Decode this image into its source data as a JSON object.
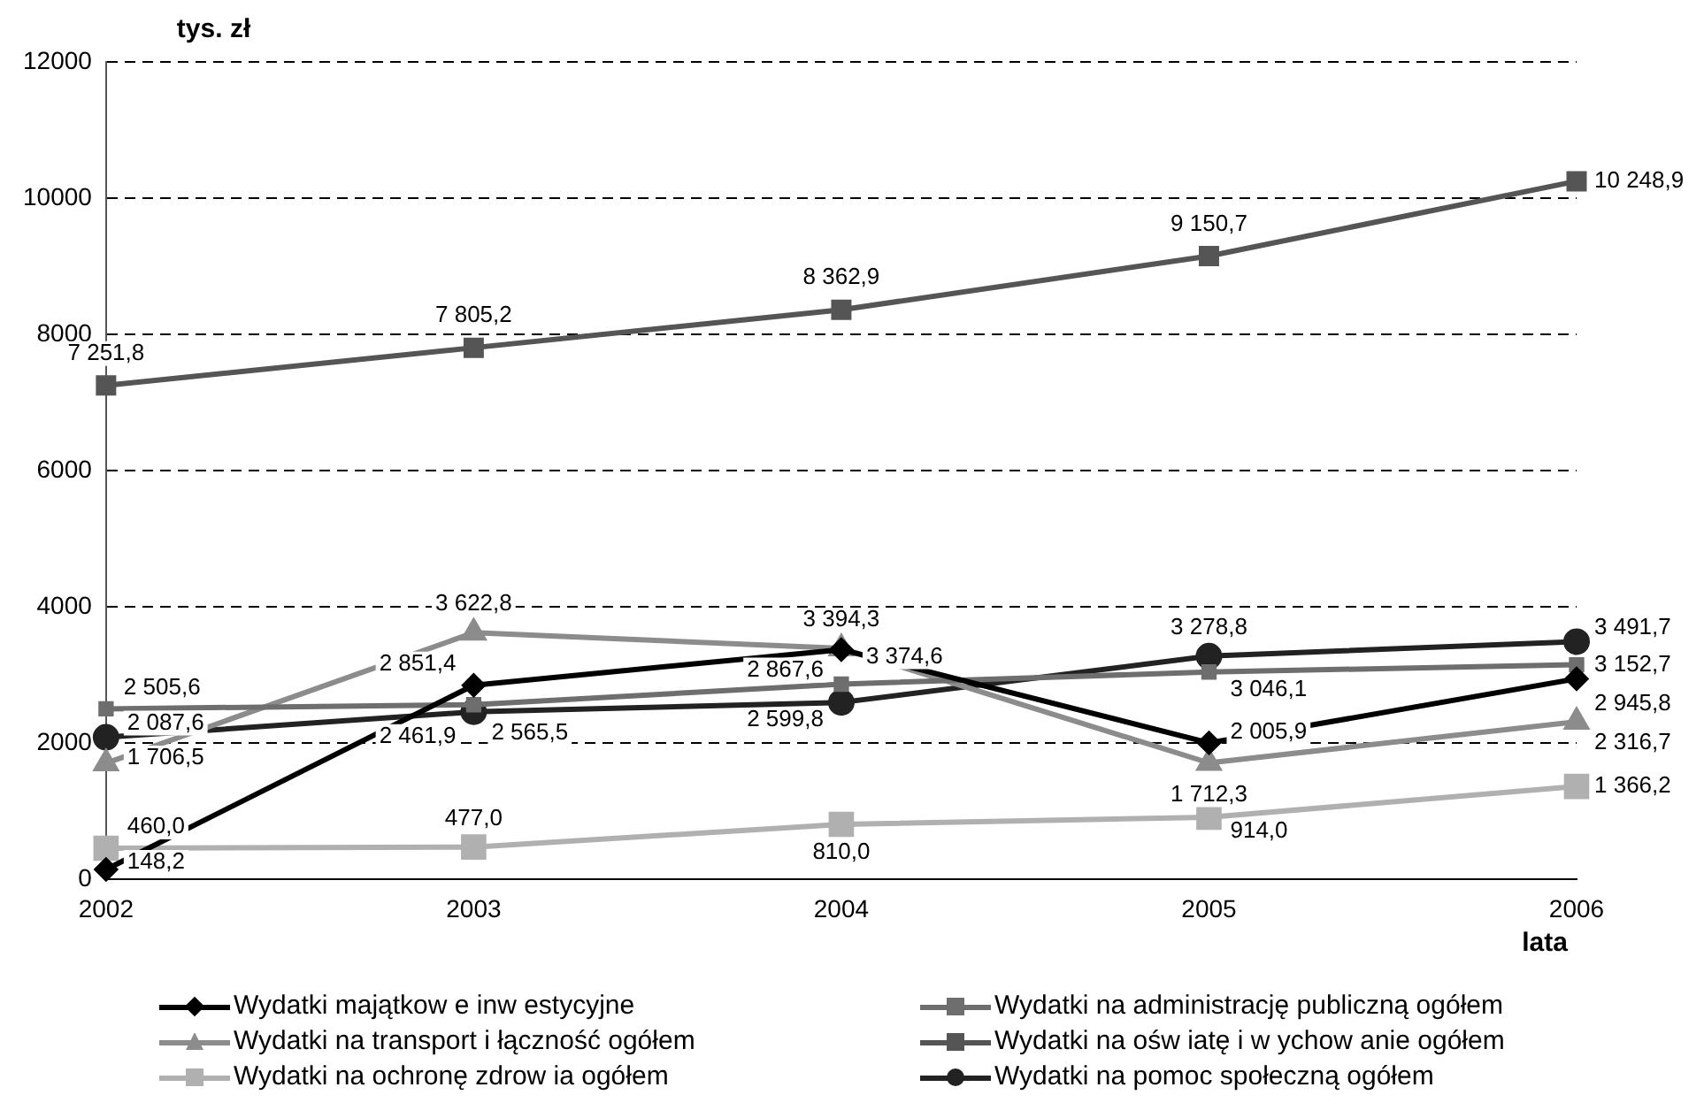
{
  "chart_data": {
    "type": "line",
    "ylabel": "tys. zł",
    "xlabel": "lata",
    "x": [
      2002,
      2003,
      2004,
      2005,
      2006
    ],
    "xlim": [
      2002,
      2006
    ],
    "xticks": [
      2002,
      2003,
      2004,
      2005,
      2006
    ],
    "ylim": [
      0,
      12000
    ],
    "yticks": [
      0,
      2000,
      4000,
      6000,
      8000,
      10000,
      12000
    ],
    "grid": "y",
    "legend": "bottom",
    "line_style": "solid",
    "series": [
      {
        "name": "Wydatki majątkow e inw estycyjne",
        "color": "#000000",
        "marker": "diamond",
        "values": [
          148.2,
          2851.4,
          3374.6,
          2005.9,
          2945.8
        ],
        "value_labels": [
          "148,2",
          "2 851,4",
          "3 374,6",
          "2 005,9",
          "2 945,8"
        ]
      },
      {
        "name": "Wydatki na administrację publiczną ogółem",
        "color": "#6e6e6e",
        "marker": "square",
        "values": [
          2505.6,
          2565.5,
          2867.6,
          3046.1,
          3152.7
        ],
        "value_labels": [
          "2 505,6",
          "2 565,5",
          "2 867,6",
          "3 046,1",
          "3 152,7"
        ]
      },
      {
        "name": "Wydatki na transport i łączność ogółem",
        "color": "#8c8c8c",
        "marker": "triangle",
        "values": [
          1706.5,
          3622.8,
          3394.3,
          1712.3,
          2316.7
        ],
        "value_labels": [
          "1 706,5",
          "3 622,8",
          "3 394,3",
          "1 712,3",
          "2 316,7"
        ]
      },
      {
        "name": "Wydatki na ośw iatę i w ychow anie ogółem",
        "color": "#555555",
        "marker": "square",
        "values": [
          7251.8,
          7805.2,
          8362.9,
          9150.7,
          10248.9
        ],
        "value_labels": [
          "7 251,8",
          "7 805,2",
          "8 362,9",
          "9 150,7",
          "10 248,9"
        ]
      },
      {
        "name": "Wydatki na ochronę zdrow ia ogółem",
        "color": "#b0b0b0",
        "marker": "square",
        "values": [
          460.0,
          477.0,
          810.0,
          914.0,
          1366.2
        ],
        "value_labels": [
          "460,0",
          "477,0",
          "810,0",
          "914,0",
          "1 366,2"
        ]
      },
      {
        "name": "Wydatki na pomoc społeczną ogółem",
        "color": "#222222",
        "marker": "circle",
        "values": [
          2087.6,
          2461.9,
          2599.8,
          3278.8,
          3491.7
        ],
        "value_labels": [
          "2 087,6",
          "2 461,9",
          "2 599,8",
          "3 278,8",
          "3 491,7"
        ]
      }
    ]
  }
}
